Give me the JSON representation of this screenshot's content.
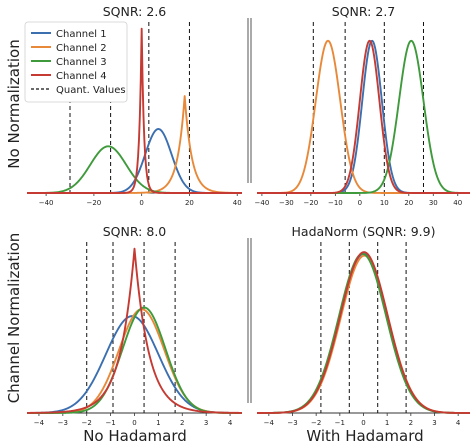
{
  "row_labels": [
    "No Normalization",
    "Channel Normalization"
  ],
  "col_labels": [
    "No Hadamard",
    "With Hadamard"
  ],
  "legend": {
    "placement": "top-left",
    "entries": [
      "Channel 1",
      "Channel 2",
      "Channel 3",
      "Channel 4",
      "Quant. Values"
    ]
  },
  "colors": {
    "channel1": "#3b6fb0",
    "channel2": "#e8893a",
    "channel3": "#3f9a3c",
    "channel4": "#c53a32",
    "quant": "#111111"
  },
  "chart_data": [
    {
      "type": "line",
      "title": "SQNR: 2.6",
      "xlim": [
        -48,
        42
      ],
      "xticks": [
        -40,
        -20,
        0,
        20,
        40
      ],
      "xtick_labels": [
        "−40",
        "−20",
        "0",
        "20",
        "40"
      ],
      "quant_values": [
        -30,
        -13,
        3,
        20
      ],
      "series": [
        {
          "name": "Channel 1",
          "dist": "normal",
          "mean": 7,
          "sd": 5.5,
          "peak": 0.37
        },
        {
          "name": "Channel 2",
          "dist": "laplace",
          "mean": 18,
          "scale": 3.0,
          "peak": 0.56
        },
        {
          "name": "Channel 3",
          "dist": "normal",
          "mean": -14,
          "sd": 7.5,
          "peak": 0.27
        },
        {
          "name": "Channel 4",
          "dist": "laplace",
          "mean": 0,
          "scale": 1.0,
          "peak": 0.95
        }
      ]
    },
    {
      "type": "line",
      "title": "SQNR: 2.7",
      "xlim": [
        -42,
        45
      ],
      "xticks": [
        -40,
        -30,
        -20,
        -10,
        0,
        10,
        20,
        30,
        40
      ],
      "xtick_labels": [
        "−40",
        "−30",
        "−20",
        "−10",
        "0",
        "10",
        "20",
        "30",
        "40"
      ],
      "quant_values": [
        -19,
        -6,
        10,
        26
      ],
      "series": [
        {
          "name": "Channel 1",
          "dist": "normal",
          "mean": 5,
          "sd": 4.0,
          "peak": 0.88
        },
        {
          "name": "Channel 2",
          "dist": "normal",
          "mean": -13,
          "sd": 5.0,
          "peak": 0.88
        },
        {
          "name": "Channel 3",
          "dist": "normal",
          "mean": 21,
          "sd": 5.0,
          "peak": 0.88
        },
        {
          "name": "Channel 4",
          "dist": "normal",
          "mean": 4,
          "sd": 4.0,
          "peak": 0.88
        }
      ]
    },
    {
      "type": "line",
      "title": "SQNR: 8.0",
      "xlim": [
        -4.5,
        4.5
      ],
      "xticks": [
        -4,
        -3,
        -2,
        -1,
        0,
        1,
        2,
        3,
        4
      ],
      "xtick_labels": [
        "−4",
        "−3",
        "−2",
        "−1",
        "0",
        "1",
        "2",
        "3",
        "4"
      ],
      "quant_values": [
        -2,
        -0.9,
        0.4,
        1.7
      ],
      "series": [
        {
          "name": "Channel 1",
          "dist": "normal",
          "mean": -0.1,
          "sd": 1.1,
          "peak": 0.56
        },
        {
          "name": "Channel 2",
          "dist": "normal",
          "mean": 0.3,
          "sd": 0.95,
          "peak": 0.6
        },
        {
          "name": "Channel 3",
          "dist": "normal",
          "mean": 0.4,
          "sd": 0.9,
          "peak": 0.61
        },
        {
          "name": "Channel 4",
          "dist": "laplace",
          "mean": 0,
          "scale": 0.6,
          "peak": 0.95
        }
      ]
    },
    {
      "type": "line",
      "title": "HadaNorm (SQNR: 9.9)",
      "xlim": [
        -4.5,
        4.5
      ],
      "xticks": [
        -4,
        -3,
        -2,
        -1,
        0,
        1,
        2,
        3,
        4
      ],
      "xtick_labels": [
        "−4",
        "−3",
        "−2",
        "−1",
        "0",
        "1",
        "2",
        "3",
        "4"
      ],
      "quant_values": [
        -1.8,
        -0.6,
        0.6,
        1.8
      ],
      "series": [
        {
          "name": "Channel 1",
          "dist": "normal",
          "mean": 0,
          "sd": 1.0,
          "peak": 0.92
        },
        {
          "name": "Channel 2",
          "dist": "normal",
          "mean": 0.04,
          "sd": 1.0,
          "peak": 0.91
        },
        {
          "name": "Channel 3",
          "dist": "normal",
          "mean": -0.04,
          "sd": 1.0,
          "peak": 0.92
        },
        {
          "name": "Channel 4",
          "dist": "normal",
          "mean": 0.02,
          "sd": 1.0,
          "peak": 0.93
        }
      ]
    }
  ]
}
